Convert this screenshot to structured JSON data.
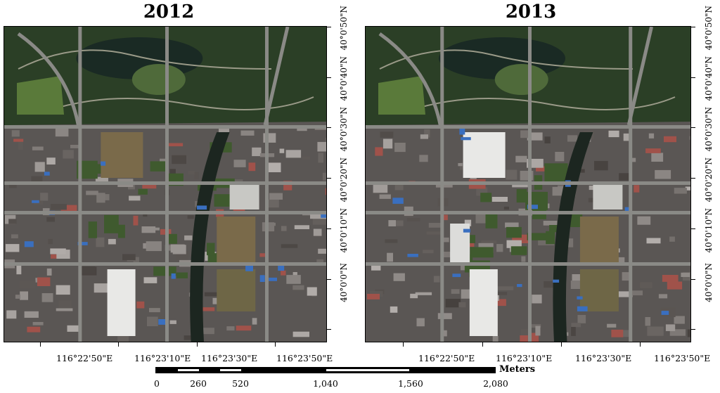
{
  "panels": [
    {
      "title": "2012",
      "year": 2012,
      "plaza_built": false
    },
    {
      "title": "2013",
      "year": 2013,
      "plaza_built": true
    }
  ],
  "latitude_labels": [
    "40°0'50\"N",
    "40°0'40\"N",
    "40°0'30\"N",
    "40°0'20\"N",
    "40°0'10\"N",
    "40°0'0\"N"
  ],
  "longitude_labels": [
    "116°22'50\"E",
    "116°23'10\"E",
    "116°23'30\"E",
    "116°23'50\"E"
  ],
  "scale_bar": {
    "unit": "Meters",
    "labels": [
      "0",
      "260",
      "520",
      "1,040",
      "1,560",
      "2,080"
    ]
  },
  "colors": {
    "park": "#2b3f26",
    "lake": "#1a2a24",
    "road": "#8a8a86",
    "urban": "#5a5654",
    "roof_white": "#e8e8e6",
    "roof_blue": "#3a6fbf",
    "bare": "#7a6a4a"
  }
}
